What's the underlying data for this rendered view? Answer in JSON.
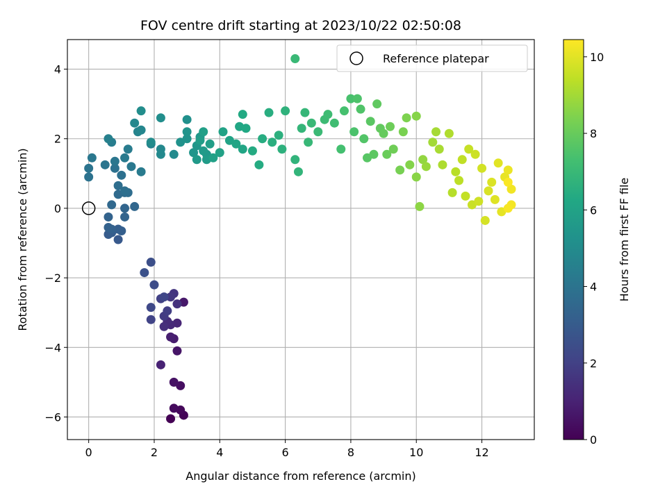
{
  "chart_data": {
    "type": "scatter",
    "title": "FOV centre drift starting at 2023/10/22 02:50:08",
    "xlabel": "Angular distance from reference (arcmin)",
    "ylabel": "Rotation from reference (arcmin)",
    "xlim": [
      -0.65,
      13.6
    ],
    "ylim": [
      -6.65,
      4.85
    ],
    "xticks": [
      0,
      2,
      4,
      6,
      8,
      10,
      12
    ],
    "yticks": [
      -6,
      -4,
      -2,
      0,
      2,
      4
    ],
    "grid": true,
    "colormap": "viridis",
    "colorbar": {
      "label": "Hours from first FF file",
      "range": [
        0,
        10.45
      ],
      "ticks": [
        0,
        2,
        4,
        6,
        8,
        10
      ]
    },
    "legend": {
      "entries": [
        "Reference platepar"
      ],
      "position": "top-right"
    },
    "reference_point": {
      "x": 0,
      "y": 0
    },
    "points": [
      [
        2.5,
        -6.05,
        0.0
      ],
      [
        2.9,
        -5.95,
        0.1
      ],
      [
        2.8,
        -5.8,
        0.2
      ],
      [
        2.6,
        -5.75,
        0.3
      ],
      [
        2.8,
        -5.1,
        0.4
      ],
      [
        2.6,
        -5.0,
        0.5
      ],
      [
        2.7,
        -4.1,
        0.6
      ],
      [
        2.9,
        -2.7,
        0.7
      ],
      [
        2.6,
        -3.75,
        0.8
      ],
      [
        2.5,
        -3.7,
        0.9
      ],
      [
        2.2,
        -4.5,
        1.0
      ],
      [
        2.7,
        -3.3,
        1.1
      ],
      [
        2.5,
        -3.35,
        1.2
      ],
      [
        2.4,
        -3.25,
        1.3
      ],
      [
        2.3,
        -3.4,
        1.4
      ],
      [
        2.7,
        -2.75,
        1.5
      ],
      [
        2.6,
        -2.45,
        1.6
      ],
      [
        2.5,
        -2.55,
        1.7
      ],
      [
        2.3,
        -3.1,
        1.8
      ],
      [
        2.4,
        -2.95,
        1.9
      ],
      [
        2.2,
        -2.6,
        2.0
      ],
      [
        1.9,
        -3.2,
        2.1
      ],
      [
        2.3,
        -2.55,
        2.2
      ],
      [
        1.9,
        -2.85,
        2.3
      ],
      [
        2.0,
        -2.2,
        2.4
      ],
      [
        1.9,
        -1.55,
        2.5
      ],
      [
        1.7,
        -1.85,
        2.6
      ],
      [
        0.9,
        -0.9,
        2.9
      ],
      [
        0.6,
        -0.75,
        3.0
      ],
      [
        0.7,
        -0.7,
        3.05
      ],
      [
        0.9,
        -0.6,
        3.1
      ],
      [
        1.0,
        -0.65,
        3.15
      ],
      [
        0.7,
        -0.6,
        3.2
      ],
      [
        0.6,
        -0.55,
        3.25
      ],
      [
        0.6,
        -0.25,
        3.3
      ],
      [
        1.1,
        -0.25,
        3.35
      ],
      [
        1.1,
        0.0,
        3.4
      ],
      [
        1.4,
        0.05,
        3.45
      ],
      [
        0.7,
        0.1,
        3.5
      ],
      [
        0.9,
        0.4,
        3.6
      ],
      [
        1.1,
        0.45,
        3.65
      ],
      [
        1.2,
        0.45,
        3.7
      ],
      [
        0.9,
        0.65,
        3.75
      ],
      [
        1.1,
        0.5,
        3.8
      ],
      [
        1.0,
        0.95,
        3.85
      ],
      [
        0.8,
        1.15,
        3.9
      ],
      [
        0.0,
        0.9,
        3.95
      ],
      [
        0.0,
        1.15,
        4.0
      ],
      [
        0.5,
        1.25,
        4.05
      ],
      [
        0.8,
        1.35,
        4.1
      ],
      [
        0.1,
        1.45,
        4.15
      ],
      [
        1.3,
        1.2,
        4.2
      ],
      [
        1.1,
        1.45,
        4.25
      ],
      [
        1.6,
        1.05,
        4.3
      ],
      [
        1.2,
        1.7,
        4.35
      ],
      [
        0.7,
        1.9,
        4.4
      ],
      [
        0.6,
        2.0,
        4.5
      ],
      [
        1.9,
        1.85,
        4.6
      ],
      [
        1.5,
        2.2,
        4.7
      ],
      [
        1.6,
        2.25,
        4.75
      ],
      [
        1.4,
        2.45,
        4.8
      ],
      [
        2.2,
        1.7,
        4.85
      ],
      [
        2.2,
        1.55,
        4.9
      ],
      [
        2.6,
        1.55,
        4.95
      ],
      [
        1.9,
        1.9,
        5.0
      ],
      [
        1.6,
        2.8,
        5.05
      ],
      [
        2.2,
        2.6,
        5.1
      ],
      [
        3.0,
        2.55,
        5.2
      ],
      [
        2.8,
        1.9,
        5.25
      ],
      [
        3.0,
        2.0,
        5.3
      ],
      [
        3.0,
        2.2,
        5.35
      ],
      [
        3.2,
        1.6,
        5.4
      ],
      [
        3.3,
        1.8,
        5.45
      ],
      [
        3.4,
        2.05,
        5.5
      ],
      [
        3.6,
        1.55,
        5.55
      ],
      [
        3.3,
        1.4,
        5.6
      ],
      [
        3.5,
        1.65,
        5.65
      ],
      [
        3.6,
        1.4,
        5.7
      ],
      [
        3.4,
        1.95,
        5.75
      ],
      [
        3.7,
        1.85,
        5.8
      ],
      [
        3.5,
        2.2,
        5.85
      ],
      [
        3.8,
        1.45,
        5.9
      ],
      [
        4.0,
        1.6,
        5.95
      ],
      [
        4.1,
        2.2,
        6.0
      ],
      [
        4.3,
        1.95,
        6.05
      ],
      [
        4.5,
        1.85,
        6.1
      ],
      [
        4.7,
        1.7,
        6.15
      ],
      [
        4.6,
        2.35,
        6.2
      ],
      [
        4.8,
        2.3,
        6.25
      ],
      [
        4.7,
        2.7,
        6.3
      ],
      [
        5.0,
        1.65,
        6.35
      ],
      [
        5.2,
        1.25,
        6.4
      ],
      [
        5.3,
        2.0,
        6.45
      ],
      [
        5.5,
        2.75,
        6.5
      ],
      [
        5.6,
        1.9,
        6.55
      ],
      [
        5.8,
        2.1,
        6.6
      ],
      [
        5.9,
        1.7,
        6.65
      ],
      [
        6.0,
        2.8,
        6.7
      ],
      [
        6.3,
        1.4,
        6.75
      ],
      [
        6.4,
        1.05,
        6.8
      ],
      [
        6.5,
        2.3,
        6.85
      ],
      [
        6.6,
        2.75,
        6.9
      ],
      [
        6.7,
        1.9,
        6.95
      ],
      [
        6.8,
        2.45,
        7.0
      ],
      [
        6.3,
        4.3,
        7.0
      ],
      [
        7.0,
        2.2,
        7.05
      ],
      [
        7.2,
        2.55,
        7.1
      ],
      [
        7.3,
        2.7,
        7.15
      ],
      [
        7.5,
        2.45,
        7.2
      ],
      [
        7.7,
        1.7,
        7.3
      ],
      [
        7.8,
        2.8,
        7.35
      ],
      [
        8.0,
        3.15,
        7.4
      ],
      [
        8.1,
        2.2,
        7.45
      ],
      [
        8.2,
        3.15,
        7.5
      ],
      [
        8.3,
        2.85,
        7.55
      ],
      [
        8.4,
        2.0,
        7.6
      ],
      [
        8.5,
        1.45,
        7.7
      ],
      [
        8.6,
        2.5,
        7.75
      ],
      [
        8.7,
        1.55,
        7.8
      ],
      [
        8.8,
        3.0,
        7.85
      ],
      [
        8.9,
        2.3,
        7.9
      ],
      [
        9.0,
        2.15,
        7.95
      ],
      [
        9.1,
        1.55,
        8.05
      ],
      [
        9.2,
        2.35,
        8.1
      ],
      [
        9.3,
        1.7,
        8.15
      ],
      [
        9.5,
        1.1,
        8.3
      ],
      [
        9.6,
        2.2,
        8.35
      ],
      [
        9.7,
        2.6,
        8.4
      ],
      [
        9.8,
        1.25,
        8.5
      ],
      [
        10.0,
        2.65,
        8.55
      ],
      [
        10.0,
        0.9,
        8.6
      ],
      [
        10.1,
        0.05,
        8.65
      ],
      [
        10.2,
        1.4,
        8.75
      ],
      [
        10.3,
        1.2,
        8.85
      ],
      [
        10.5,
        1.9,
        9.0
      ],
      [
        10.6,
        2.2,
        9.05
      ],
      [
        10.7,
        1.7,
        9.1
      ],
      [
        10.8,
        1.25,
        9.15
      ],
      [
        11.0,
        2.15,
        9.2
      ],
      [
        11.1,
        0.45,
        9.3
      ],
      [
        11.2,
        1.05,
        9.35
      ],
      [
        11.3,
        0.8,
        9.4
      ],
      [
        11.4,
        1.4,
        9.45
      ],
      [
        11.5,
        0.35,
        9.5
      ],
      [
        11.6,
        1.7,
        9.55
      ],
      [
        11.7,
        0.1,
        9.6
      ],
      [
        11.8,
        1.55,
        9.65
      ],
      [
        11.9,
        0.2,
        9.7
      ],
      [
        12.0,
        1.15,
        9.75
      ],
      [
        12.1,
        -0.35,
        9.8
      ],
      [
        12.2,
        0.5,
        9.85
      ],
      [
        12.3,
        0.75,
        9.9
      ],
      [
        12.4,
        0.25,
        9.95
      ],
      [
        12.5,
        1.3,
        10.0
      ],
      [
        12.6,
        -0.1,
        10.05
      ],
      [
        12.7,
        0.9,
        10.1
      ],
      [
        12.8,
        1.1,
        10.15
      ],
      [
        12.9,
        0.55,
        10.25
      ],
      [
        12.9,
        0.1,
        10.3
      ],
      [
        12.8,
        0.0,
        10.35
      ],
      [
        12.8,
        0.75,
        10.4
      ]
    ]
  }
}
